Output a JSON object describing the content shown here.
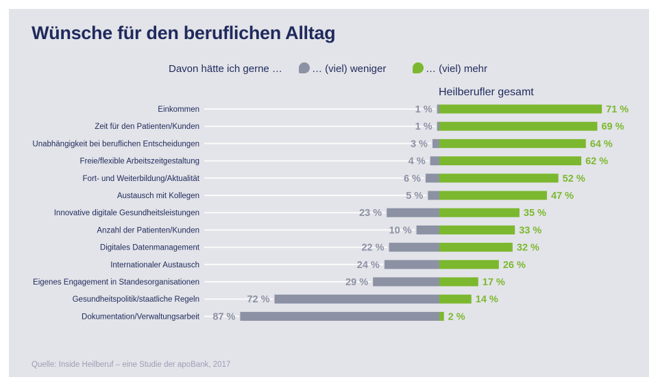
{
  "title": "Wünsche für den beruflichen Alltag",
  "legend": {
    "intro": "Davon hätte ich gerne …",
    "less_label": "… (viel) weniger",
    "more_label": "… (viel) mehr"
  },
  "subtitle": "Heilberufler gesamt",
  "source": "Quelle: Inside Heilberuf – eine Studie der apoBank, 2017",
  "colors": {
    "less": "#8c92a4",
    "more": "#7cb82f",
    "title": "#1f2a5c",
    "background": "#e3e4e9"
  },
  "chart_data": {
    "type": "bar",
    "orientation": "horizontal-diverging",
    "title": "Wünsche für den beruflichen Alltag",
    "unit": "%",
    "categories": [
      "Einkommen",
      "Zeit für den Patienten/Kunden",
      "Unabhängigkeit bei beruflichen Entscheidungen",
      "Freie/flexible Arbeitszeitgestaltung",
      "Fort- und Weiterbildung/Aktualität",
      "Austausch mit Kollegen",
      "Innovative digitale Gesundheitsleistungen",
      "Anzahl der Patienten/Kunden",
      "Digitales Datenmanagement",
      "Internationaler Austausch",
      "Eigenes Engagement in Standesorganisationen",
      "Gesundheitspolitik/staatliche Regeln",
      "Dokumentation/Verwaltungsarbeit"
    ],
    "series": [
      {
        "name": "… (viel) weniger",
        "values": [
          1,
          1,
          3,
          4,
          6,
          5,
          23,
          10,
          22,
          24,
          29,
          72,
          87
        ]
      },
      {
        "name": "… (viel) mehr",
        "values": [
          71,
          69,
          64,
          62,
          52,
          47,
          35,
          33,
          32,
          26,
          17,
          14,
          2
        ]
      }
    ],
    "value_labels": {
      "less": [
        "1 %",
        "1 %",
        "3 %",
        "4 %",
        "6 %",
        "5 %",
        "23 %",
        "10 %",
        "22 %",
        "24 %",
        "29 %",
        "72 %",
        "87 %"
      ],
      "more": [
        "71 %",
        "69 %",
        "64 %",
        "62 %",
        "52 %",
        "47 %",
        "35 %",
        "33 %",
        "32 %",
        "26 %",
        "17 %",
        "14 %",
        "2 %"
      ]
    }
  }
}
